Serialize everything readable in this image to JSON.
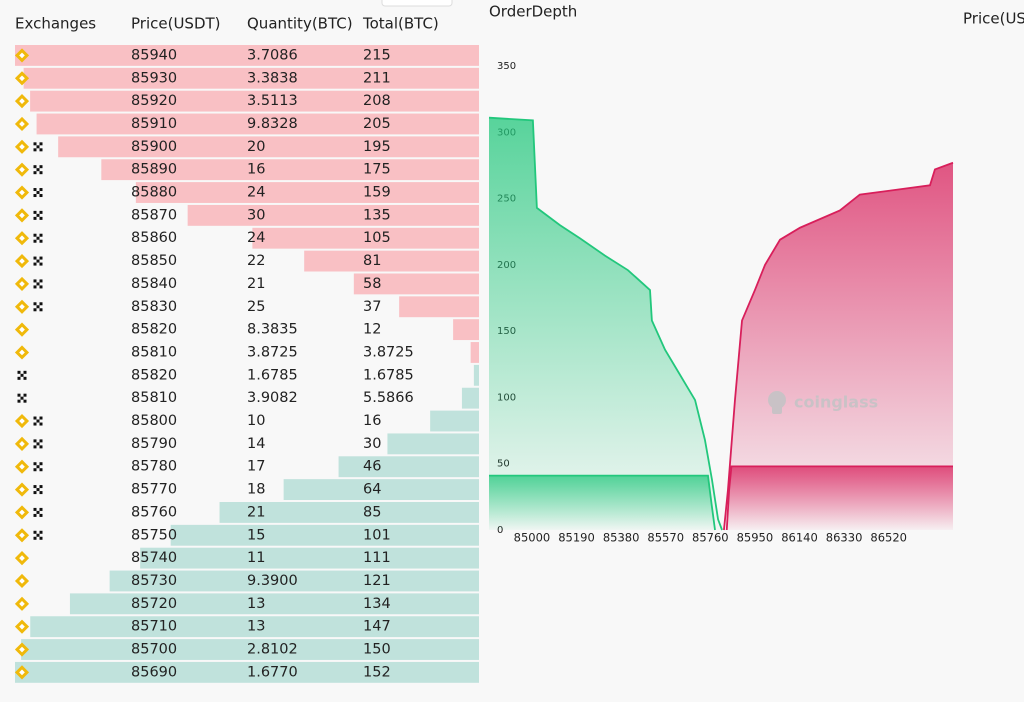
{
  "table": {
    "headers": [
      "Exchanges",
      "Price(USDT)",
      "Quantity(BTC)",
      "Total(BTC)"
    ],
    "ask_color": "#f9c0c4",
    "bid_color": "#c0e2dc",
    "rows": [
      {
        "icons": [
          "binance"
        ],
        "side": "ask",
        "price": 85940,
        "quantity": 3.7086,
        "total": 215
      },
      {
        "icons": [
          "binance"
        ],
        "side": "ask",
        "price": 85930,
        "quantity": 3.3838,
        "total": 211
      },
      {
        "icons": [
          "binance"
        ],
        "side": "ask",
        "price": 85920,
        "quantity": 3.5113,
        "total": 208
      },
      {
        "icons": [
          "binance"
        ],
        "side": "ask",
        "price": 85910,
        "quantity": 9.8328,
        "total": 205
      },
      {
        "icons": [
          "binance",
          "okx"
        ],
        "side": "ask",
        "price": 85900,
        "quantity": 20,
        "total": 195
      },
      {
        "icons": [
          "binance",
          "okx"
        ],
        "side": "ask",
        "price": 85890,
        "quantity": 16,
        "total": 175
      },
      {
        "icons": [
          "binance",
          "okx"
        ],
        "side": "ask",
        "price": 85880,
        "quantity": 24,
        "total": 159
      },
      {
        "icons": [
          "binance",
          "okx"
        ],
        "side": "ask",
        "price": 85870,
        "quantity": 30,
        "total": 135
      },
      {
        "icons": [
          "binance",
          "okx"
        ],
        "side": "ask",
        "price": 85860,
        "quantity": 24,
        "total": 105
      },
      {
        "icons": [
          "binance",
          "okx"
        ],
        "side": "ask",
        "price": 85850,
        "quantity": 22,
        "total": 81
      },
      {
        "icons": [
          "binance",
          "okx"
        ],
        "side": "ask",
        "price": 85840,
        "quantity": 21,
        "total": 58
      },
      {
        "icons": [
          "binance",
          "okx"
        ],
        "side": "ask",
        "price": 85830,
        "quantity": 25,
        "total": 37
      },
      {
        "icons": [
          "binance"
        ],
        "side": "ask",
        "price": 85820,
        "quantity": 8.3835,
        "total": 12
      },
      {
        "icons": [
          "binance"
        ],
        "side": "ask",
        "price": 85810,
        "quantity": 3.8725,
        "total": 3.8725
      },
      {
        "icons": [
          "okx"
        ],
        "side": "bid",
        "price": 85820,
        "quantity": 1.6785,
        "total": 1.6785
      },
      {
        "icons": [
          "okx"
        ],
        "side": "bid",
        "price": 85810,
        "quantity": 3.9082,
        "total": 5.5866
      },
      {
        "icons": [
          "binance",
          "okx"
        ],
        "side": "bid",
        "price": 85800,
        "quantity": 10,
        "total": 16
      },
      {
        "icons": [
          "binance",
          "okx"
        ],
        "side": "bid",
        "price": 85790,
        "quantity": 14,
        "total": 30
      },
      {
        "icons": [
          "binance",
          "okx"
        ],
        "side": "bid",
        "price": 85780,
        "quantity": 17,
        "total": 46
      },
      {
        "icons": [
          "binance",
          "okx"
        ],
        "side": "bid",
        "price": 85770,
        "quantity": 18,
        "total": 64
      },
      {
        "icons": [
          "binance",
          "okx"
        ],
        "side": "bid",
        "price": 85760,
        "quantity": 21,
        "total": 85
      },
      {
        "icons": [
          "binance",
          "okx"
        ],
        "side": "bid",
        "price": 85750,
        "quantity": 15,
        "total": 101
      },
      {
        "icons": [
          "binance"
        ],
        "side": "bid",
        "price": 85740,
        "quantity": 11,
        "total": 111
      },
      {
        "icons": [
          "binance"
        ],
        "side": "bid",
        "price": 85730,
        "quantity": {
          "value": 9.39,
          "label": "9.3900"
        },
        "total": 121
      },
      {
        "icons": [
          "binance"
        ],
        "side": "bid",
        "price": 85720,
        "quantity": 13,
        "total": 134
      },
      {
        "icons": [
          "binance"
        ],
        "side": "bid",
        "price": 85710,
        "quantity": 13,
        "total": 147
      },
      {
        "icons": [
          "binance"
        ],
        "side": "bid",
        "price": 85700,
        "quantity": 2.8102,
        "total": 150
      },
      {
        "icons": [
          "binance"
        ],
        "side": "bid",
        "price": 85690,
        "quantity": {
          "value": 1.677,
          "label": "1.6770"
        },
        "total": 152
      }
    ]
  },
  "depth_chart": {
    "type": "area",
    "title": "OrderDepth",
    "watermark": "coinglass",
    "xlim": [
      84817,
      86794
    ],
    "ylim": [
      0,
      350
    ],
    "xticks": [
      85000,
      85190,
      85380,
      85570,
      85760,
      85950,
      86140,
      86330,
      86520
    ],
    "yticks": [
      0,
      50,
      100,
      150,
      200,
      250,
      300,
      350
    ],
    "series": [
      {
        "color": "#22c77c",
        "x": [
          84817,
          85004,
          85021,
          85119,
          85205,
          85311,
          85409,
          85503,
          85511,
          85567,
          85631,
          85695,
          85737,
          85767,
          85793,
          85810
        ],
        "values": [
          311,
          309,
          243,
          230,
          220,
          207,
          196,
          181,
          158,
          136,
          117,
          98,
          68,
          38,
          8,
          0
        ]
      },
      {
        "color": "#22c77c",
        "x": [
          84817,
          85750,
          85765,
          85780
        ],
        "values": [
          41,
          41,
          20,
          0
        ]
      },
      {
        "color": "#d81f5b",
        "x": [
          85818,
          85835,
          85865,
          85895,
          85950,
          85993,
          86057,
          86142,
          86312,
          86397,
          86696,
          86717,
          86794
        ],
        "values": [
          0,
          30,
          98,
          158,
          181,
          200,
          219,
          228,
          241,
          253,
          260,
          272,
          277
        ]
      },
      {
        "color": "#d81f5b",
        "x": [
          85830,
          85840,
          85850,
          86794
        ],
        "values": [
          0,
          30,
          48,
          48
        ]
      }
    ]
  },
  "side_header": "Price(US"
}
